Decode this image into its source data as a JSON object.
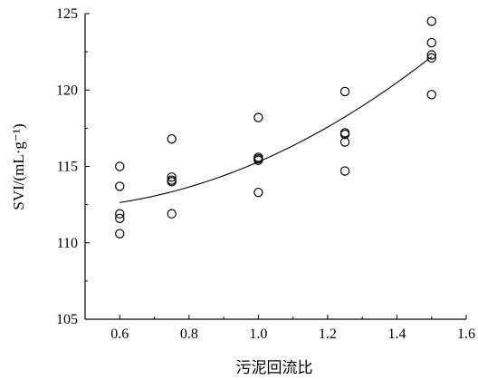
{
  "chart_data": {
    "type": "scatter",
    "title": "",
    "xlabel": "污泥回流比",
    "ylabel": "SVI/(mL·g⁻¹)",
    "xlim": [
      0.5,
      1.6
    ],
    "ylim": [
      105,
      125
    ],
    "xticks": [
      0.6,
      0.8,
      1.0,
      1.2,
      1.4,
      1.6
    ],
    "xtick_labels": [
      "0.6",
      "0.8",
      "1.0",
      "1.2",
      "1.4",
      "1.6"
    ],
    "yticks": [
      105,
      110,
      115,
      120,
      125
    ],
    "ytick_labels": [
      "105",
      "110",
      "115",
      "120",
      "125"
    ],
    "grid": false,
    "legend": "none",
    "points": {
      "x": [
        0.6,
        0.6,
        0.6,
        0.6,
        0.6,
        0.75,
        0.75,
        0.75,
        0.75,
        0.75,
        1.0,
        1.0,
        1.0,
        1.0,
        1.0,
        1.25,
        1.25,
        1.25,
        1.25,
        1.25,
        1.5,
        1.5,
        1.5,
        1.5,
        1.5
      ],
      "y": [
        115.0,
        113.7,
        111.9,
        111.6,
        110.6,
        116.8,
        114.3,
        114.1,
        114.0,
        111.9,
        118.2,
        115.6,
        115.4,
        113.3,
        115.5,
        119.9,
        117.2,
        117.1,
        116.6,
        114.7,
        124.5,
        123.1,
        122.3,
        122.1,
        119.7
      ]
    },
    "fit_curve": {
      "x": [
        0.6,
        0.75,
        1.0,
        1.25,
        1.5
      ],
      "y": [
        112.6,
        113.4,
        115.3,
        118.2,
        122.2
      ]
    }
  }
}
